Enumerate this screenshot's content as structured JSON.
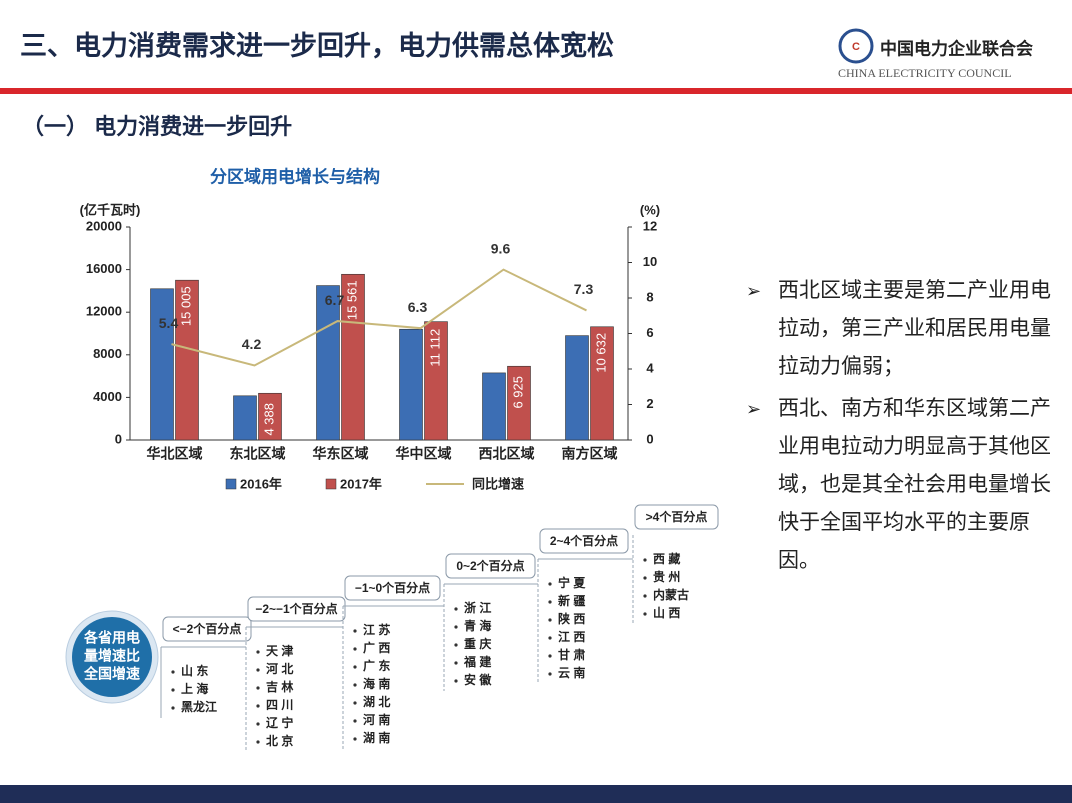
{
  "header": {
    "title": "三、电力消费需求进一步回升，电力供需总体宽松",
    "org_name": "中国电力企业联合会",
    "org_name_en": "CHINA ELECTRICITY COUNCIL"
  },
  "section_title": "（一） 电力消费进一步回升",
  "chart_data": {
    "type": "bar",
    "title": "分区域用电增长与结构",
    "y_label": "(亿千瓦时)",
    "y2_label": "(%)",
    "categories": [
      "华北区域",
      "东北区域",
      "华东区域",
      "华中区域",
      "西北区域",
      "南方区域"
    ],
    "series": [
      {
        "name": "2016年",
        "color": "#3c6eb4",
        "values": [
          14200,
          4150,
          14500,
          10400,
          6300,
          9800
        ]
      },
      {
        "name": "2017年",
        "color": "#c0504d",
        "values": [
          15005,
          4388,
          15561,
          11112,
          6925,
          10632
        ],
        "value_labels": [
          "15 005",
          "4 388",
          "15 561",
          "11 112",
          "6 925",
          "10 632"
        ]
      },
      {
        "name": "同比增速",
        "type": "line",
        "axis": "y2",
        "color": "#c8b87a",
        "values": [
          5.4,
          4.2,
          6.7,
          6.3,
          9.6,
          7.3
        ]
      }
    ],
    "ylim": [
      0,
      20000
    ],
    "yticks": [
      0,
      4000,
      8000,
      12000,
      16000,
      20000
    ],
    "y2lim": [
      0,
      12
    ],
    "y2ticks": [
      0,
      2,
      4,
      6,
      8,
      10,
      12
    ]
  },
  "bullets": [
    "西北区域主要是第二产业用电拉动，第三产业和居民用电量拉动力偏弱；",
    "西北、南方和华东区域第二产业用电拉动力明显高于其他区 域，也是其全社会用电量增长快于全国平均水平的主要原因。"
  ],
  "staircase": {
    "center_label": [
      "各省用电",
      "量增速比",
      "全国增速"
    ],
    "steps": [
      {
        "label": "<−2个百分点",
        "provinces": [
          "山 东",
          "上 海",
          "黑龙江"
        ]
      },
      {
        "label": "−2~−1个百分点",
        "provinces": [
          "天 津",
          "河 北",
          "吉 林",
          "四 川",
          "辽 宁",
          "北 京"
        ]
      },
      {
        "label": "−1~0个百分点",
        "provinces": [
          "江 苏",
          "广 西",
          "广 东",
          "海 南",
          "湖 北",
          "河 南",
          "湖 南"
        ]
      },
      {
        "label": "0~2个百分点",
        "provinces": [
          "浙 江",
          "青 海",
          "重 庆",
          "福 建",
          "安 徽"
        ]
      },
      {
        "label": "2~4个百分点",
        "provinces": [
          "宁 夏",
          "新 疆",
          "陕 西",
          "江 西",
          "甘 肃",
          "云 南"
        ]
      },
      {
        "label": ">4个百分点",
        "provinces": [
          "西 藏",
          "贵 州",
          "内蒙古",
          "山 西"
        ]
      }
    ]
  }
}
